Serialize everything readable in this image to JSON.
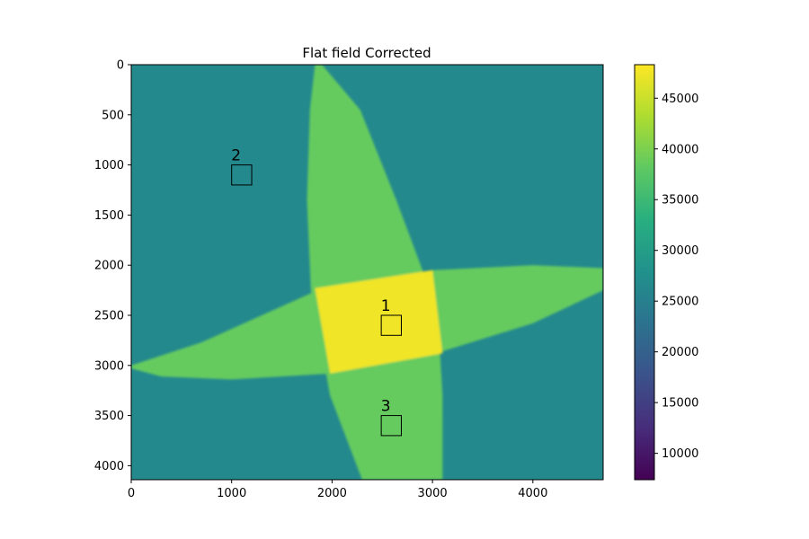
{
  "chart_data": {
    "type": "heatmap",
    "title": "Flat field Corrected",
    "xlabel": "",
    "ylabel": "",
    "xlim": [
      0,
      4700
    ],
    "ylim": [
      4140,
      0
    ],
    "x_ticks": [
      0,
      1000,
      2000,
      3000,
      4000
    ],
    "y_ticks": [
      0,
      500,
      1000,
      1500,
      2000,
      2500,
      3000,
      3500,
      4000
    ],
    "colormap": "viridis",
    "grid": false,
    "colorbar": {
      "range": [
        7400,
        48300
      ],
      "ticks": [
        10000,
        15000,
        20000,
        25000,
        30000,
        35000,
        40000,
        45000
      ]
    },
    "field_values": {
      "background": 26500,
      "single_band": 38500,
      "band_overlap": 47500
    },
    "bands": [
      {
        "name": "vertical",
        "polygon": [
          [
            1830,
            0
          ],
          [
            1900,
            0
          ],
          [
            2280,
            450
          ],
          [
            2640,
            1350
          ],
          [
            3050,
            2450
          ],
          [
            3100,
            3300
          ],
          [
            3100,
            4140
          ],
          [
            2300,
            4140
          ],
          [
            1980,
            3300
          ],
          [
            1790,
            2250
          ],
          [
            1750,
            1350
          ],
          [
            1780,
            450
          ]
        ]
      },
      {
        "name": "horizontal",
        "polygon": [
          [
            0,
            3000
          ],
          [
            700,
            2770
          ],
          [
            1900,
            2230
          ],
          [
            3000,
            2050
          ],
          [
            4000,
            2000
          ],
          [
            4700,
            2030
          ],
          [
            4700,
            2250
          ],
          [
            4000,
            2580
          ],
          [
            3000,
            2890
          ],
          [
            2000,
            3080
          ],
          [
            1000,
            3140
          ],
          [
            300,
            3110
          ],
          [
            0,
            3030
          ]
        ]
      }
    ],
    "overlap": [
      [
        1830,
        2230
      ],
      [
        3000,
        2050
      ],
      [
        3100,
        2880
      ],
      [
        1980,
        3080
      ]
    ],
    "regions": [
      {
        "label": "1",
        "x": 2590,
        "y": 2600,
        "size": 200
      },
      {
        "label": "2",
        "x": 1100,
        "y": 1100,
        "size": 200
      },
      {
        "label": "3",
        "x": 2590,
        "y": 3600,
        "size": 200
      }
    ]
  }
}
